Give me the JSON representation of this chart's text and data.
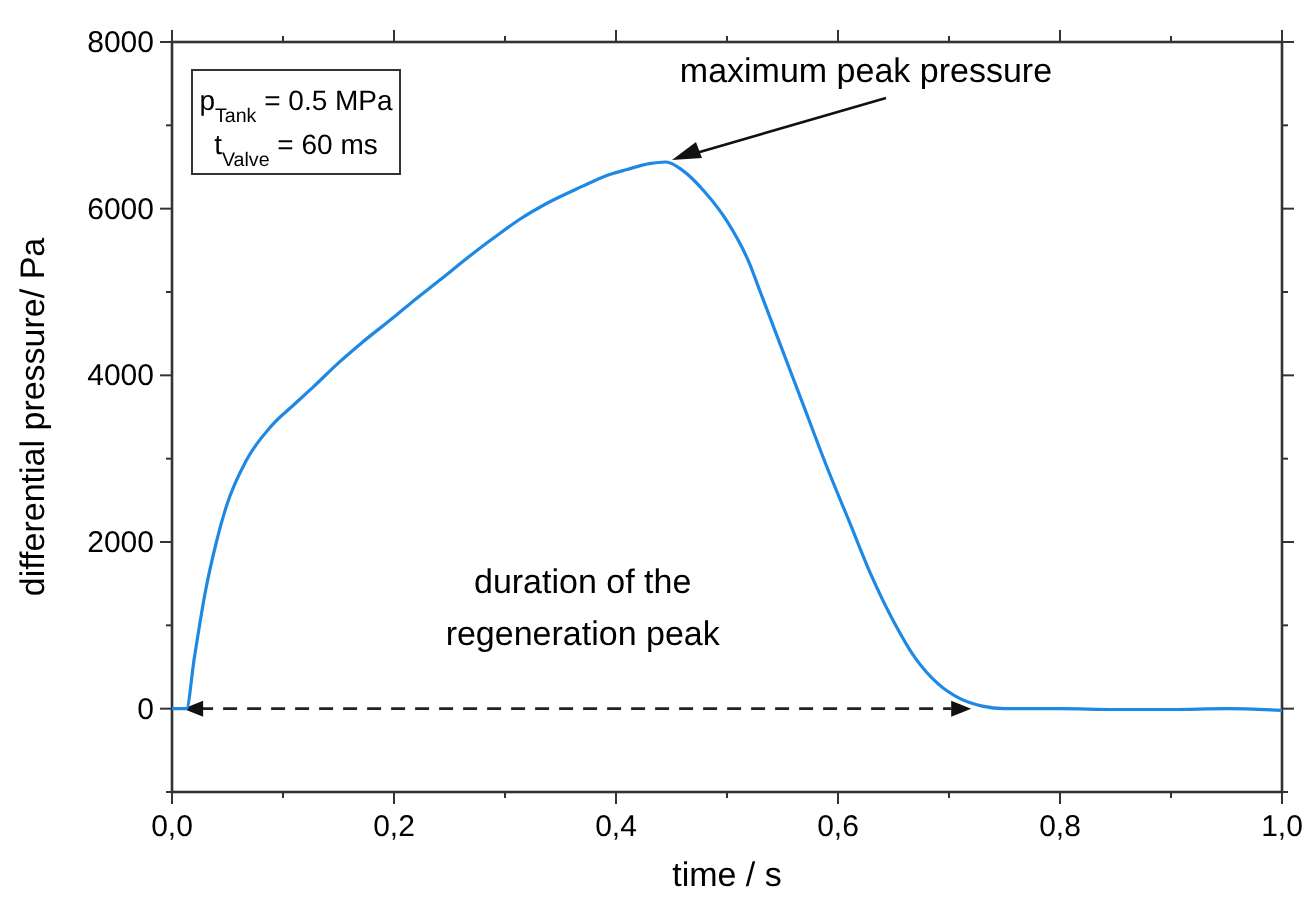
{
  "chart_data": {
    "type": "line",
    "xlabel": "time / s",
    "ylabel": "differential pressure/ Pa",
    "xlim": [
      0,
      1
    ],
    "ylim": [
      -1000,
      8000
    ],
    "xticks": [
      {
        "value": 0,
        "label": "0,0"
      },
      {
        "value": 0.1,
        "label": null
      },
      {
        "value": 0.2,
        "label": "0,2"
      },
      {
        "value": 0.3,
        "label": null
      },
      {
        "value": 0.4,
        "label": "0,4"
      },
      {
        "value": 0.5,
        "label": null
      },
      {
        "value": 0.6,
        "label": "0,6"
      },
      {
        "value": 0.7,
        "label": null
      },
      {
        "value": 0.8,
        "label": "0,8"
      },
      {
        "value": 0.9,
        "label": null
      },
      {
        "value": 1,
        "label": "1,0"
      }
    ],
    "yticks": [
      {
        "value": -1000,
        "label": null
      },
      0,
      {
        "value": 1000,
        "label": null
      },
      2000,
      {
        "value": 3000,
        "label": null
      },
      4000,
      {
        "value": 5000,
        "label": null
      },
      6000,
      {
        "value": 7000,
        "label": null
      },
      8000
    ],
    "grid": false,
    "line_style": "solid",
    "x": [
      0,
      0.013,
      0.02,
      0.03,
      0.04,
      0.049,
      0.067,
      0.09,
      0.11,
      0.128,
      0.15,
      0.17,
      0.2,
      0.22,
      0.241,
      0.27,
      0.29,
      0.313,
      0.34,
      0.37,
      0.39,
      0.41,
      0.43,
      0.445,
      0.46,
      0.48,
      0.5,
      0.52,
      0.53,
      0.55,
      0.57,
      0.59,
      0.61,
      0.63,
      0.65,
      0.67,
      0.69,
      0.71,
      0.73,
      0.75,
      0.8,
      0.85,
      0.9,
      0.95,
      1
    ],
    "series": [
      {
        "color": "#1e88e5",
        "values": [
          0,
          0,
          600,
          1400,
          2000,
          2430,
          2980,
          3400,
          3650,
          3870,
          4150,
          4380,
          4700,
          4920,
          5140,
          5450,
          5650,
          5870,
          6080,
          6270,
          6390,
          6470,
          6540,
          6560,
          6460,
          6200,
          5850,
          5350,
          5000,
          4300,
          3600,
          2900,
          2250,
          1600,
          1050,
          600,
          300,
          120,
          30,
          0,
          0,
          -10,
          -10,
          0,
          -20
        ]
      }
    ],
    "annotations": [
      {
        "text": "maximum peak pressure",
        "x": 0.445,
        "y": 6560
      },
      "duration of the regeneration peak",
      "p$_{Tank}$ = 0.5 MPa",
      "t$_{Valve}$ = 60 ms"
    ]
  }
}
